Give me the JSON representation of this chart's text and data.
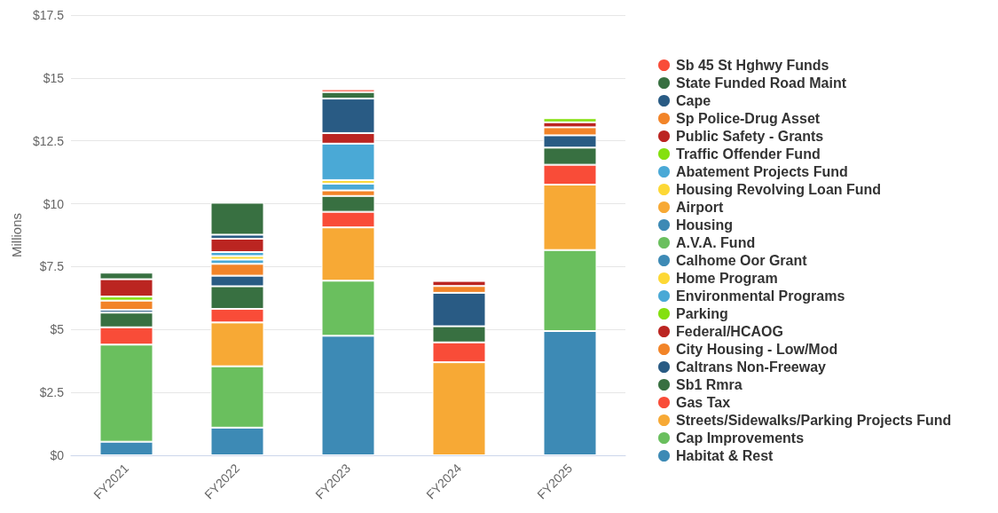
{
  "chart_data": {
    "type": "bar",
    "stacked": true,
    "ylabel": "Millions",
    "categories": [
      "FY2021",
      "FY2022",
      "FY2023",
      "FY2024",
      "FY2025"
    ],
    "ylim": [
      0,
      17.5
    ],
    "yticks": [
      {
        "value": 0,
        "label": "$0"
      },
      {
        "value": 2.5,
        "label": "$2.5"
      },
      {
        "value": 5,
        "label": "$5"
      },
      {
        "value": 7.5,
        "label": "$7.5"
      },
      {
        "value": 10,
        "label": "$10"
      },
      {
        "value": 12.5,
        "label": "$12.5"
      },
      {
        "value": 15,
        "label": "$15"
      },
      {
        "value": 17.5,
        "label": "$17.5"
      }
    ],
    "grid": "y",
    "legend": "right",
    "series": [
      {
        "name": "Habitat & Rest",
        "color": "#3d8ab5",
        "values": [
          0.54,
          1.1,
          4.75,
          null,
          4.94
        ]
      },
      {
        "name": "Cap Improvements",
        "color": "#6abf5e",
        "values": [
          3.86,
          2.44,
          2.19,
          null,
          3.22
        ]
      },
      {
        "name": "Streets/Sidewalks/Parking Projects Fund",
        "color": "#f7a935",
        "values": [
          null,
          1.74,
          2.12,
          3.7,
          2.6
        ]
      },
      {
        "name": "Gas Tax",
        "color": "#f94c38",
        "values": [
          0.69,
          0.54,
          0.62,
          0.79,
          0.79
        ]
      },
      {
        "name": "Sb1 Rmra",
        "color": "#387041",
        "values": [
          0.58,
          0.9,
          0.63,
          0.64,
          0.68
        ]
      },
      {
        "name": "Caltrans Non-Freeway",
        "color": "#295b84",
        "values": [
          0.11,
          0.42,
          null,
          1.33,
          0.49
        ]
      },
      {
        "name": "City Housing - Low/Mod",
        "color": "#f28428",
        "values": [
          0.37,
          0.47,
          0.22,
          0.27,
          0.32
        ]
      },
      {
        "name": "Federal/HCAOG",
        "color": "#bb2521",
        "values": [
          null,
          null,
          null,
          0.2,
          0.2
        ]
      },
      {
        "name": "Parking",
        "color": "#84e00f",
        "values": [
          null,
          null,
          null,
          null,
          0.16
        ]
      },
      {
        "name": "Environmental Programs",
        "color": "#4aa9d6",
        "values": [
          null,
          0.17,
          0.27,
          null,
          null
        ]
      },
      {
        "name": "Home Program",
        "color": "#fdd835",
        "values": [
          null,
          0.14,
          0.14,
          null,
          null
        ]
      },
      {
        "name": "Calhome Oor Grant",
        "color": "#3d8ab5",
        "values": [
          null,
          null,
          null,
          null,
          null
        ]
      },
      {
        "name": "A.V.A. Fund",
        "color": "#6abf5e",
        "values": [
          null,
          null,
          null,
          null,
          null
        ]
      },
      {
        "name": "Housing",
        "color": "#3d8ab5",
        "values": [
          null,
          null,
          null,
          null,
          null
        ]
      },
      {
        "name": "Airport",
        "color": "#f7a935",
        "values": [
          null,
          null,
          null,
          null,
          null
        ]
      },
      {
        "name": "Housing Revolving Loan Fund",
        "color": "#fdd835",
        "values": [
          null,
          null,
          null,
          null,
          null
        ]
      },
      {
        "name": "Abatement Projects Fund",
        "color": "#4aa9d6",
        "values": [
          null,
          0.16,
          1.45,
          null,
          null
        ]
      },
      {
        "name": "Traffic Offender Fund",
        "color": "#84e00f",
        "values": [
          0.16,
          null,
          null,
          null,
          null
        ]
      },
      {
        "name": "Public Safety - Grants",
        "color": "#bb2521",
        "values": [
          0.69,
          0.53,
          0.42,
          null,
          null
        ]
      },
      {
        "name": "Sp Police-Drug Asset",
        "color": "#f28428",
        "values": [
          null,
          null,
          null,
          null,
          null
        ]
      },
      {
        "name": "Cape",
        "color": "#295b84",
        "values": [
          null,
          0.16,
          1.37,
          null,
          null
        ]
      },
      {
        "name": "State Funded Road Maint",
        "color": "#387041",
        "values": [
          0.26,
          1.27,
          0.26,
          null,
          null
        ]
      },
      {
        "name": "Sb 45 St Hghwy Funds",
        "color": "#f94c38",
        "values": [
          null,
          null,
          0.11,
          null,
          null
        ]
      }
    ]
  }
}
